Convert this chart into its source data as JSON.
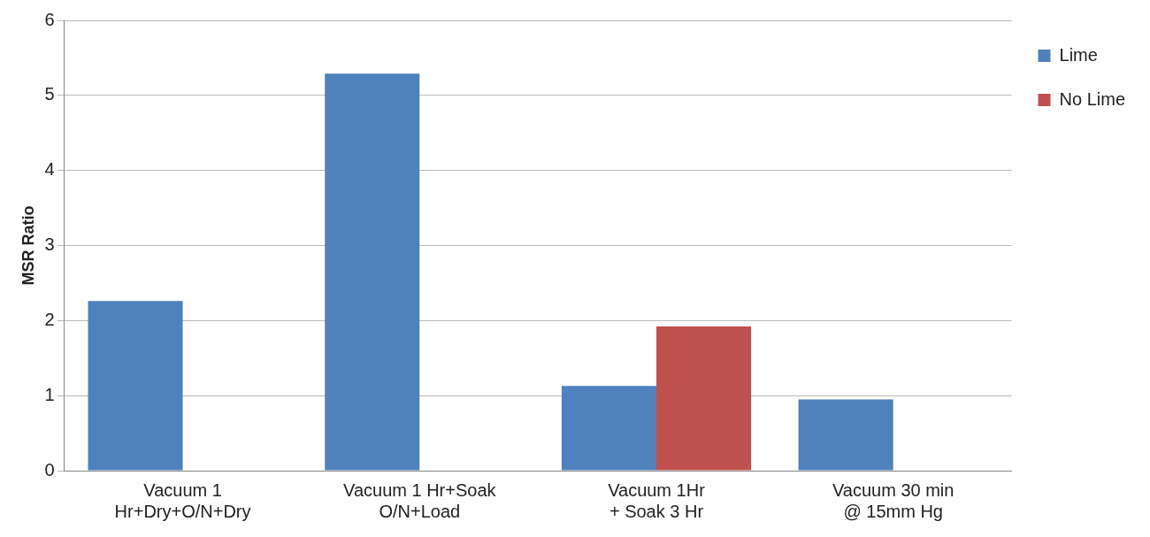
{
  "chart_data": {
    "type": "bar",
    "ylabel": "MSR Ratio",
    "categories": [
      "Vacuum 1\nHr+Dry+O/N+Dry",
      "Vacuum 1 Hr+Soak\nO/N+Load",
      "Vacuum 1Hr\n+ Soak 3 Hr",
      "Vacuum 30 min\n@ 15mm Hg"
    ],
    "series": [
      {
        "name": "Lime",
        "color": "#4f81bd",
        "values": [
          2.26,
          5.29,
          1.13,
          0.95
        ]
      },
      {
        "name": "No Lime",
        "color": "#c0504d",
        "values": [
          null,
          null,
          1.92,
          null
        ]
      }
    ],
    "ylim": [
      0,
      6
    ],
    "yticks": [
      0,
      1,
      2,
      3,
      4,
      5,
      6
    ],
    "grid": "y",
    "legend": "right"
  }
}
